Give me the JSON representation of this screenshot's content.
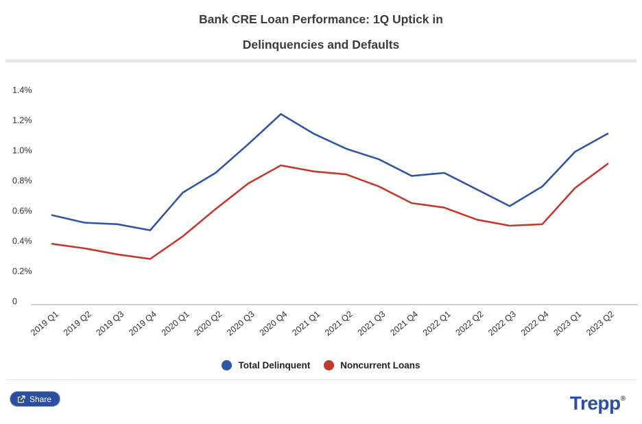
{
  "header": {
    "title_line1": "Bank CRE Loan Performance: 1Q Uptick in",
    "title_line2": "Delinquencies and Defaults"
  },
  "chart_data": {
    "type": "line",
    "title": "Bank CRE Loan Performance: 1Q Uptick in Delinquencies and Defaults",
    "xlabel": "",
    "ylabel": "",
    "ylim": [
      0,
      1.4
    ],
    "ytick_step": 0.2,
    "ytick_labels": [
      "0",
      "0.2%",
      "0.4%",
      "0.6%",
      "0.8%",
      "1.0%",
      "1.2%",
      "1.4%"
    ],
    "grid": false,
    "legend_position": "bottom",
    "categories": [
      "2019 Q1",
      "2019 Q2",
      "2019 Q3",
      "2019 Q4",
      "2020 Q1",
      "2020 Q2",
      "2020 Q3",
      "2020 Q4",
      "2021 Q1",
      "2021 Q2",
      "2021 Q3",
      "2021 Q4",
      "2022 Q1",
      "2022 Q2",
      "2022 Q3",
      "2022 Q4",
      "2023 Q1",
      "2023 Q2"
    ],
    "unit": "%",
    "series": [
      {
        "name": "Total Delinquent",
        "color": "#2e56a5",
        "values": [
          0.57,
          0.52,
          0.51,
          0.47,
          0.72,
          0.85,
          1.04,
          1.24,
          1.11,
          1.01,
          0.94,
          0.83,
          0.85,
          0.74,
          0.63,
          0.76,
          0.99,
          1.11
        ]
      },
      {
        "name": "Noncurrent Loans",
        "color": "#c23a2c",
        "values": [
          0.38,
          0.35,
          0.31,
          0.28,
          0.43,
          0.61,
          0.78,
          0.9,
          0.86,
          0.84,
          0.76,
          0.65,
          0.62,
          0.54,
          0.5,
          0.51,
          0.75,
          0.91
        ]
      }
    ]
  },
  "footer": {
    "share_label": "Share",
    "brand": "Trepp",
    "brand_registered": "®"
  },
  "colors": {
    "title_text": "#3c3c3c",
    "axis_text": "#2f2f2f",
    "axis_line": "#cfcfcf",
    "divider": "#e9e9e9",
    "share_button_bg": "#2b4f9f",
    "brand_blue": "#2b4ea1"
  }
}
